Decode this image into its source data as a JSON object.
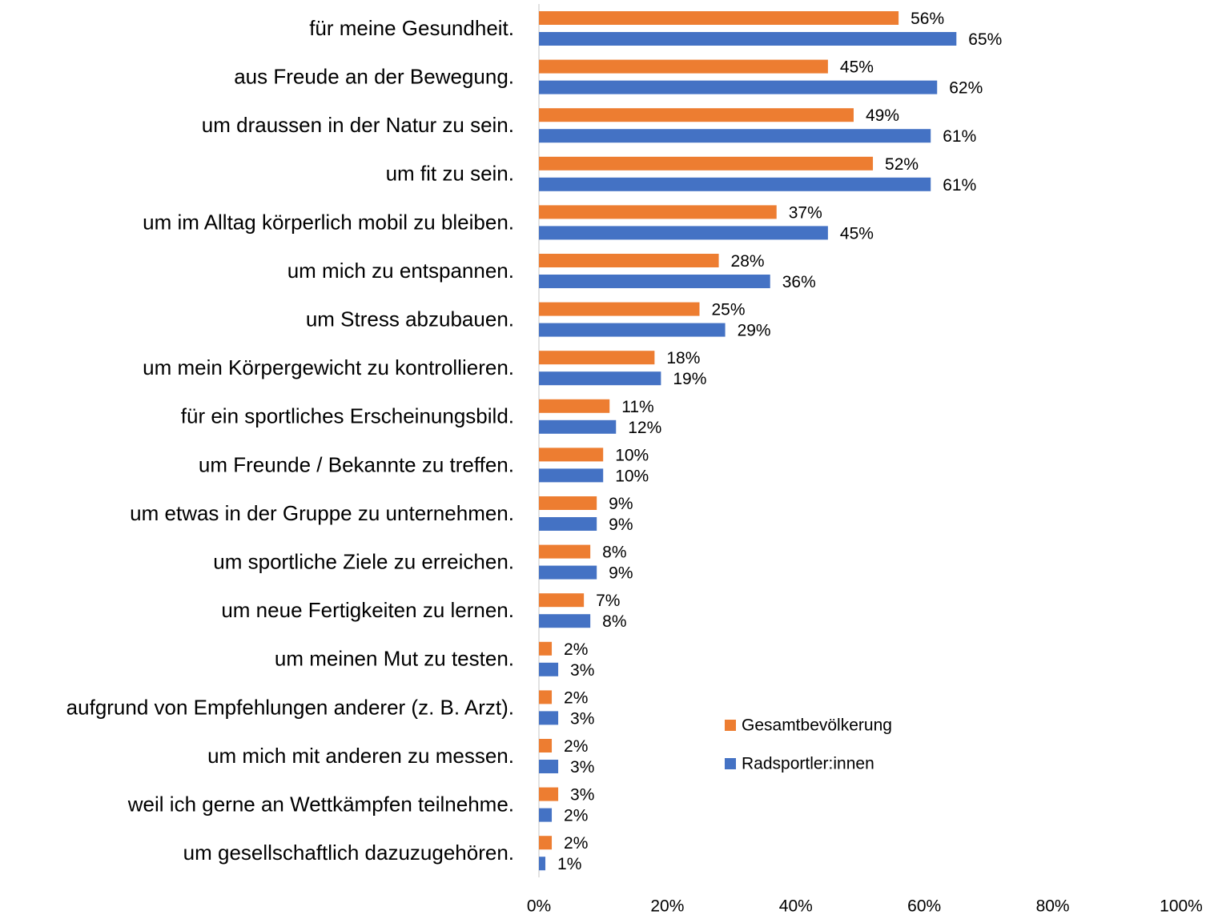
{
  "chart_data": {
    "type": "bar",
    "orientation": "horizontal",
    "categories": [
      "für meine Gesundheit.",
      "aus Freude an der Bewegung.",
      "um draussen in der Natur zu sein.",
      "um fit zu sein.",
      "um im Alltag körperlich mobil zu bleiben.",
      "um mich zu entspannen.",
      "um Stress abzubauen.",
      "um mein Körpergewicht zu kontrollieren.",
      "für ein sportliches Erscheinungsbild.",
      "um Freunde / Bekannte zu treffen.",
      "um etwas in der Gruppe zu unternehmen.",
      "um sportliche Ziele zu erreichen.",
      "um neue Fertigkeiten zu lernen.",
      "um meinen Mut zu testen.",
      "aufgrund von Empfehlungen anderer (z. B. Arzt).",
      "um mich mit anderen zu messen.",
      "weil ich gerne an Wettkämpfen teilnehme.",
      "um gesellschaftlich dazuzugehören."
    ],
    "series": [
      {
        "name": "Gesamtbevölkerung",
        "color": "#ed7d31",
        "values": [
          56,
          45,
          49,
          52,
          37,
          28,
          25,
          18,
          11,
          10,
          9,
          8,
          7,
          2,
          2,
          2,
          3,
          2
        ],
        "value_labels": [
          "56%",
          "45%",
          "49%",
          "52%",
          "37%",
          "28%",
          "25%",
          "18%",
          "11%",
          "10%",
          "9%",
          "8%",
          "7%",
          "2%",
          "2%",
          "2%",
          "3%",
          "2%"
        ]
      },
      {
        "name": "Radsportler:innen",
        "color": "#4472c4",
        "values": [
          65,
          62,
          61,
          61,
          45,
          36,
          29,
          19,
          12,
          10,
          9,
          9,
          8,
          3,
          3,
          3,
          2,
          1
        ],
        "value_labels": [
          "65%",
          "62%",
          "61%",
          "61%",
          "45%",
          "36%",
          "29%",
          "19%",
          "12%",
          "10%",
          "9%",
          "9%",
          "8%",
          "3%",
          "3%",
          "3%",
          "2%",
          "1%"
        ]
      }
    ],
    "xlim": [
      0,
      100
    ],
    "xticks": [
      {
        "value": 0,
        "label": "0%"
      },
      {
        "value": 20,
        "label": "20%"
      },
      {
        "value": 40,
        "label": "40%"
      },
      {
        "value": 60,
        "label": "60%"
      },
      {
        "value": 80,
        "label": "80%"
      },
      {
        "value": 100,
        "label": "100%"
      }
    ]
  }
}
